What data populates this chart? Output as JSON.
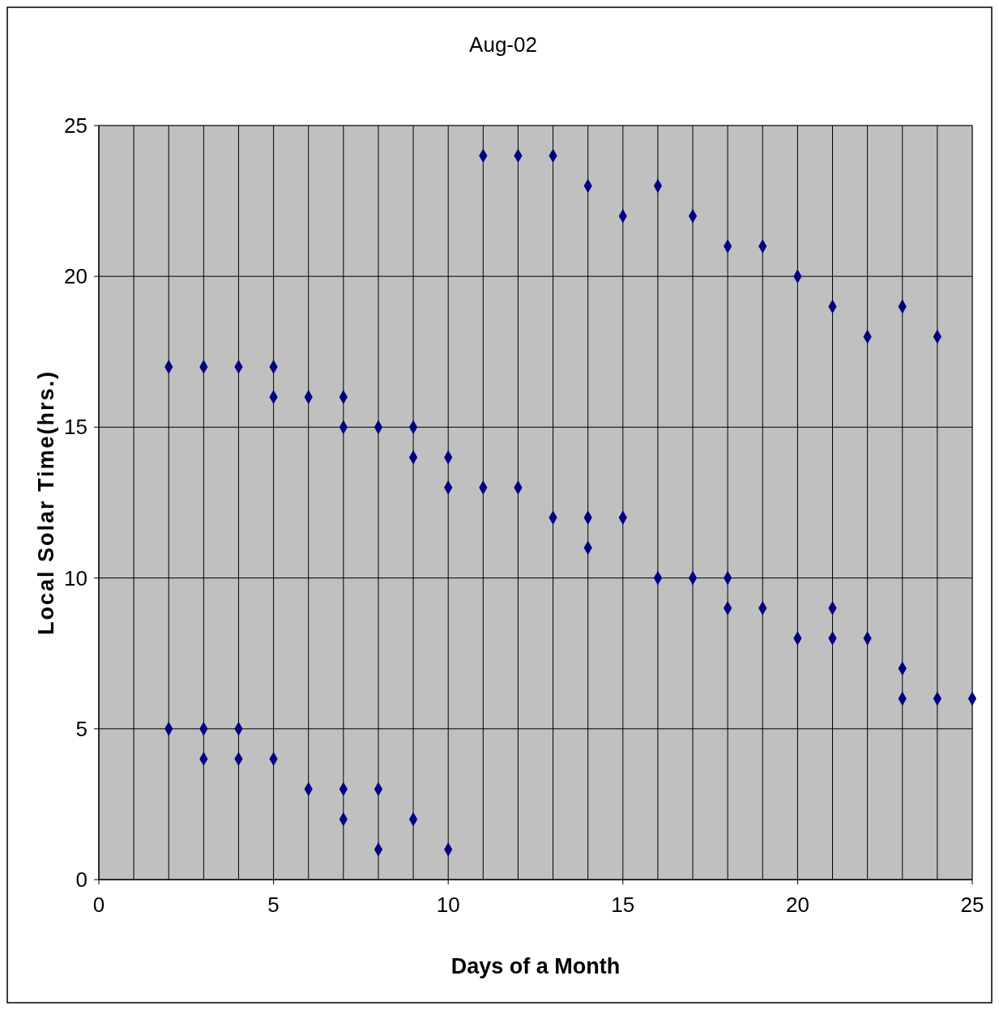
{
  "chart_data": {
    "type": "scatter",
    "title": "Aug-02",
    "xlabel": "Days of a Month",
    "ylabel": "Local Solar Time(hrs.)",
    "x": [
      2,
      2,
      3,
      3,
      3,
      4,
      4,
      4,
      5,
      5,
      5,
      6,
      6,
      7,
      7,
      7,
      7,
      8,
      8,
      8,
      9,
      9,
      9,
      10,
      10,
      10,
      11,
      11,
      12,
      12,
      13,
      13,
      14,
      14,
      14,
      15,
      15,
      16,
      16,
      17,
      17,
      18,
      18,
      18,
      19,
      19,
      20,
      20,
      21,
      21,
      21,
      22,
      22,
      23,
      23,
      23,
      24,
      24,
      25
    ],
    "series": [
      {
        "color": "#000080",
        "values": [
          17,
          5,
          17,
          5,
          4,
          17,
          5,
          4,
          17,
          16,
          4,
          16,
          3,
          16,
          15,
          3,
          2,
          15,
          3,
          1,
          15,
          14,
          2,
          14,
          13,
          1,
          24,
          13,
          24,
          13,
          24,
          12,
          23,
          12,
          11,
          22,
          12,
          23,
          10,
          22,
          10,
          21,
          10,
          9,
          21,
          9,
          20,
          8,
          19,
          9,
          8,
          18,
          8,
          19,
          7,
          6,
          18,
          6,
          6
        ]
      }
    ],
    "xlim": [
      0,
      25
    ],
    "ylim": [
      0,
      25
    ],
    "xticks": [
      0,
      {
        "value": 1,
        "label": null
      },
      {
        "value": 2,
        "label": null
      },
      {
        "value": 3,
        "label": null
      },
      {
        "value": 4,
        "label": null
      },
      5,
      {
        "value": 6,
        "label": null
      },
      {
        "value": 7,
        "label": null
      },
      {
        "value": 8,
        "label": null
      },
      {
        "value": 9,
        "label": null
      },
      10,
      {
        "value": 11,
        "label": null
      },
      {
        "value": 12,
        "label": null
      },
      {
        "value": 13,
        "label": null
      },
      {
        "value": 14,
        "label": null
      },
      15,
      {
        "value": 16,
        "label": null
      },
      {
        "value": 17,
        "label": null
      },
      {
        "value": 18,
        "label": null
      },
      {
        "value": 19,
        "label": null
      },
      20,
      {
        "value": 21,
        "label": null
      },
      {
        "value": 22,
        "label": null
      },
      {
        "value": 23,
        "label": null
      },
      {
        "value": 24,
        "label": null
      },
      25
    ],
    "yticks": [
      0,
      5,
      10,
      15,
      20,
      25
    ],
    "grid": true,
    "marker": "diamond"
  }
}
